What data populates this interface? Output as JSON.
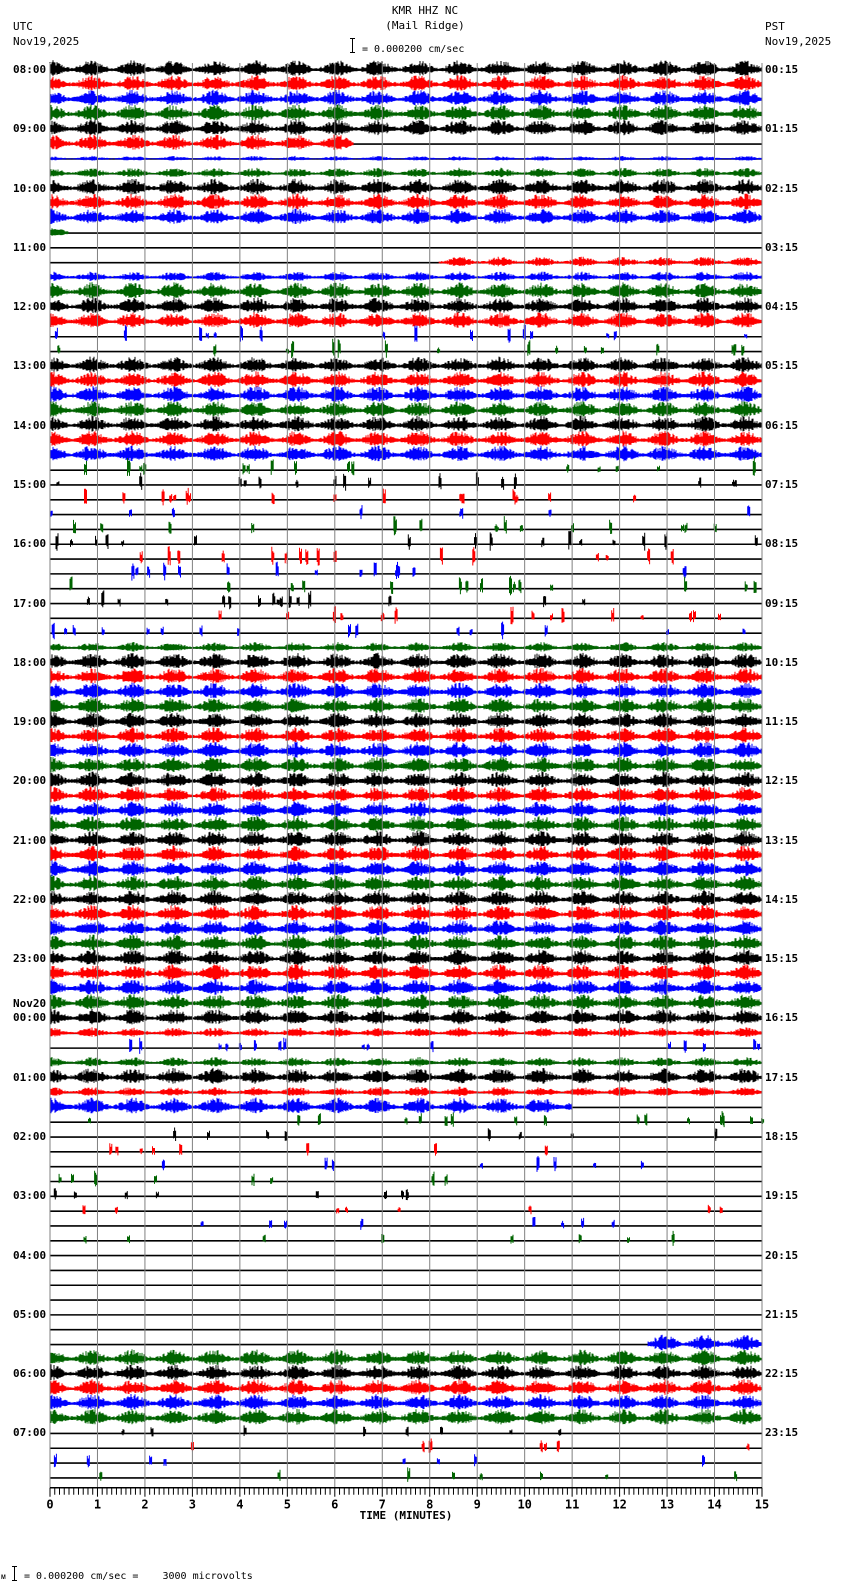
{
  "header": {
    "station": "KMR HHZ NC",
    "location": "(Mail Ridge)",
    "left_tz": "UTC",
    "left_date": "Nov19,2025",
    "right_tz": "PST",
    "right_date": "Nov19,2025",
    "scale_text": "= 0.000200 cm/sec"
  },
  "footer": {
    "scale_text": "= 0.000200 cm/sec =    3000 microvolts",
    "prefix": "ᴍ"
  },
  "colors": {
    "black": "#000000",
    "red": "#ff0000",
    "blue": "#0000ff",
    "green": "#006400",
    "grid": "#808080"
  },
  "chart_data": {
    "type": "helicorder",
    "title": "KMR HHZ NC (Mail Ridge)",
    "xlabel": "TIME (MINUTES)",
    "x_ticks": [
      "0",
      "1",
      "2",
      "3",
      "4",
      "5",
      "6",
      "7",
      "8",
      "9",
      "10",
      "11",
      "12",
      "13",
      "14",
      "15"
    ],
    "xlim": [
      0,
      15
    ],
    "minor_ticks_per_minute": 10,
    "rows_per_hour": 4,
    "row_color_cycle": [
      "black",
      "red",
      "blue",
      "green"
    ],
    "left_labels": [
      {
        "row": 0,
        "text": "08:00"
      },
      {
        "row": 4,
        "text": "09:00"
      },
      {
        "row": 8,
        "text": "10:00"
      },
      {
        "row": 12,
        "text": "11:00"
      },
      {
        "row": 16,
        "text": "12:00"
      },
      {
        "row": 20,
        "text": "13:00"
      },
      {
        "row": 24,
        "text": "14:00"
      },
      {
        "row": 28,
        "text": "15:00"
      },
      {
        "row": 32,
        "text": "16:00"
      },
      {
        "row": 36,
        "text": "17:00"
      },
      {
        "row": 40,
        "text": "18:00"
      },
      {
        "row": 44,
        "text": "19:00"
      },
      {
        "row": 48,
        "text": "20:00"
      },
      {
        "row": 52,
        "text": "21:00"
      },
      {
        "row": 56,
        "text": "22:00"
      },
      {
        "row": 60,
        "text": "23:00"
      },
      {
        "row": 64,
        "text": "00:00",
        "date": "Nov20"
      },
      {
        "row": 68,
        "text": "01:00"
      },
      {
        "row": 72,
        "text": "02:00"
      },
      {
        "row": 76,
        "text": "03:00"
      },
      {
        "row": 80,
        "text": "04:00"
      },
      {
        "row": 84,
        "text": "05:00"
      },
      {
        "row": 88,
        "text": "06:00"
      },
      {
        "row": 92,
        "text": "07:00"
      }
    ],
    "right_labels": [
      "00:15",
      "01:15",
      "02:15",
      "03:15",
      "04:15",
      "05:15",
      "06:15",
      "07:15",
      "08:15",
      "09:15",
      "10:15",
      "11:15",
      "12:15",
      "13:15",
      "14:15",
      "15:15",
      "16:15",
      "17:15",
      "18:15",
      "19:15",
      "20:15",
      "21:15",
      "22:15",
      "23:15"
    ],
    "rows_activity": [
      [
        0,
        15,
        "high"
      ],
      [
        0,
        15,
        "high"
      ],
      [
        0,
        15,
        "high"
      ],
      [
        0,
        15,
        "high"
      ],
      [
        0,
        15,
        "high"
      ],
      [
        0,
        6.4,
        "high"
      ],
      [
        0,
        15,
        "low"
      ],
      [
        0,
        15,
        "med"
      ],
      [
        0,
        15,
        "high"
      ],
      [
        0,
        15,
        "high"
      ],
      [
        0,
        15,
        "high"
      ],
      [
        0,
        0.4,
        "med"
      ],
      [
        0,
        0,
        "none"
      ],
      [
        8.2,
        15,
        "med"
      ],
      [
        0,
        15,
        "med"
      ],
      [
        0,
        15,
        "high"
      ],
      [
        0,
        15,
        "high"
      ],
      [
        0,
        15,
        "high"
      ],
      [
        0,
        15,
        "spike"
      ],
      [
        0,
        15,
        "spike"
      ],
      [
        0,
        15,
        "high"
      ],
      [
        0,
        15,
        "high"
      ],
      [
        0,
        15,
        "high"
      ],
      [
        0,
        15,
        "high"
      ],
      [
        0,
        15,
        "high"
      ],
      [
        0,
        15,
        "high"
      ],
      [
        0,
        15,
        "high"
      ],
      [
        0,
        15,
        "spike"
      ],
      [
        0,
        15,
        "spike"
      ],
      [
        0,
        15,
        "spike"
      ],
      [
        0,
        15,
        "sparse"
      ],
      [
        0,
        15,
        "spike"
      ],
      [
        0,
        15,
        "spike"
      ],
      [
        0,
        15,
        "spike"
      ],
      [
        0,
        15,
        "spike"
      ],
      [
        0,
        15,
        "spike"
      ],
      [
        0,
        15,
        "spike"
      ],
      [
        0,
        15,
        "spike"
      ],
      [
        0,
        15,
        "spike"
      ],
      [
        0,
        15,
        "med"
      ],
      [
        0,
        15,
        "high"
      ],
      [
        0,
        15,
        "high"
      ],
      [
        0,
        15,
        "high"
      ],
      [
        0,
        15,
        "high"
      ],
      [
        0,
        15,
        "high"
      ],
      [
        0,
        15,
        "high"
      ],
      [
        0,
        15,
        "high"
      ],
      [
        0,
        15,
        "high"
      ],
      [
        0,
        15,
        "high"
      ],
      [
        0,
        15,
        "high"
      ],
      [
        0,
        15,
        "high"
      ],
      [
        0,
        15,
        "high"
      ],
      [
        0,
        15,
        "high"
      ],
      [
        0,
        15,
        "high"
      ],
      [
        0,
        15,
        "high"
      ],
      [
        0,
        15,
        "high"
      ],
      [
        0,
        15,
        "high"
      ],
      [
        0,
        15,
        "high"
      ],
      [
        0,
        15,
        "high"
      ],
      [
        0,
        15,
        "high"
      ],
      [
        0,
        15,
        "high"
      ],
      [
        0,
        15,
        "high"
      ],
      [
        0,
        15,
        "high"
      ],
      [
        0,
        15,
        "high"
      ],
      [
        0,
        15,
        "high"
      ],
      [
        0,
        15,
        "med"
      ],
      [
        0,
        15,
        "spike"
      ],
      [
        0,
        15,
        "med"
      ],
      [
        0,
        15,
        "high"
      ],
      [
        0,
        15,
        "med"
      ],
      [
        0,
        11,
        "high"
      ],
      [
        0,
        15,
        "spike"
      ],
      [
        0,
        15,
        "sparse"
      ],
      [
        0,
        15,
        "sparse"
      ],
      [
        0,
        15,
        "sparse"
      ],
      [
        0,
        15,
        "sparse"
      ],
      [
        0,
        15,
        "sparse"
      ],
      [
        0,
        15,
        "sparse"
      ],
      [
        0,
        15,
        "sparse"
      ],
      [
        0,
        15,
        "sparse"
      ],
      [
        0,
        0,
        "none"
      ],
      [
        0,
        0,
        "none"
      ],
      [
        0,
        0,
        "none"
      ],
      [
        0,
        0,
        "none"
      ],
      [
        0,
        0,
        "none"
      ],
      [
        0,
        0,
        "none"
      ],
      [
        12.6,
        15,
        "high"
      ],
      [
        0,
        15,
        "high"
      ],
      [
        0,
        15,
        "high"
      ],
      [
        0,
        15,
        "high"
      ],
      [
        0,
        15,
        "high"
      ],
      [
        0,
        15,
        "high"
      ],
      [
        0,
        15,
        "sparse"
      ],
      [
        0,
        15,
        "sparse"
      ],
      [
        0,
        15,
        "sparse"
      ],
      [
        0,
        15,
        "sparse"
      ]
    ]
  }
}
